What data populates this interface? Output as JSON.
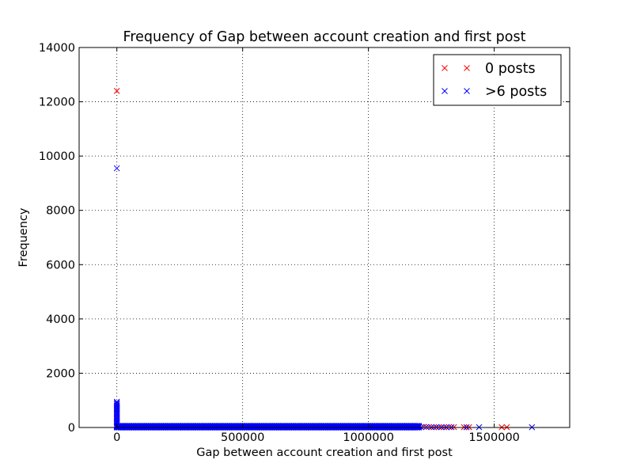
{
  "chart_data": {
    "type": "scatter",
    "title": "Frequency of Gap between account creation and first post",
    "xlabel": "Gap between account creation and first post",
    "ylabel": "Frequency",
    "xlim": [
      -150000,
      1800000
    ],
    "ylim": [
      0,
      14000
    ],
    "xticks": [
      0,
      500000,
      1000000,
      1500000
    ],
    "xtick_labels": [
      "0",
      "500000",
      "1000000",
      "1500000"
    ],
    "yticks": [
      0,
      2000,
      4000,
      6000,
      8000,
      10000,
      12000,
      14000
    ],
    "ytick_labels": [
      "0",
      "2000",
      "4000",
      "6000",
      "8000",
      "10000",
      "12000",
      "14000"
    ],
    "grid": true,
    "legend_position": "top-right",
    "marker": "x",
    "series": [
      {
        "name": "0 posts",
        "color": "#ff0000",
        "points": [
          [
            0,
            12400
          ],
          [
            0,
            900
          ],
          [
            0,
            800
          ],
          [
            0,
            700
          ],
          [
            0,
            600
          ],
          [
            0,
            500
          ],
          [
            0,
            400
          ],
          [
            0,
            300
          ],
          [
            0,
            200
          ],
          [
            0,
            100
          ],
          [
            1080000,
            20
          ],
          [
            1100000,
            10
          ],
          [
            1130000,
            15
          ],
          [
            1160000,
            10
          ],
          [
            1180000,
            20
          ],
          [
            1200000,
            10
          ],
          [
            1220000,
            30
          ],
          [
            1240000,
            20
          ],
          [
            1260000,
            10
          ],
          [
            1280000,
            15
          ],
          [
            1300000,
            10
          ],
          [
            1320000,
            20
          ],
          [
            1340000,
            15
          ],
          [
            1380000,
            10
          ],
          [
            1400000,
            10
          ],
          [
            1530000,
            10
          ],
          [
            1550000,
            10
          ]
        ]
      },
      {
        "name": ">6 posts",
        "color": "#0000ff",
        "points": [
          [
            0,
            9550
          ],
          [
            0,
            950
          ],
          [
            0,
            900
          ],
          [
            0,
            850
          ],
          [
            0,
            800
          ],
          [
            0,
            750
          ],
          [
            0,
            700
          ],
          [
            0,
            650
          ],
          [
            0,
            600
          ],
          [
            0,
            550
          ],
          [
            0,
            500
          ],
          [
            0,
            450
          ],
          [
            0,
            400
          ],
          [
            0,
            350
          ],
          [
            0,
            300
          ],
          [
            0,
            250
          ],
          [
            0,
            200
          ],
          [
            0,
            150
          ],
          [
            0,
            100
          ],
          [
            0,
            50
          ],
          [
            1000000,
            30
          ],
          [
            1040000,
            20
          ],
          [
            1060000,
            10
          ],
          [
            1090000,
            20
          ],
          [
            1120000,
            10
          ],
          [
            1150000,
            20
          ],
          [
            1170000,
            10
          ],
          [
            1190000,
            15
          ],
          [
            1210000,
            10
          ],
          [
            1230000,
            20
          ],
          [
            1250000,
            10
          ],
          [
            1270000,
            15
          ],
          [
            1290000,
            10
          ],
          [
            1310000,
            10
          ],
          [
            1330000,
            10
          ],
          [
            1390000,
            10
          ],
          [
            1440000,
            10
          ],
          [
            1650000,
            10
          ]
        ],
        "dense_band": {
          "x_from": 0,
          "x_to": 1200000,
          "y_max": 60,
          "step": 5000
        }
      }
    ]
  }
}
